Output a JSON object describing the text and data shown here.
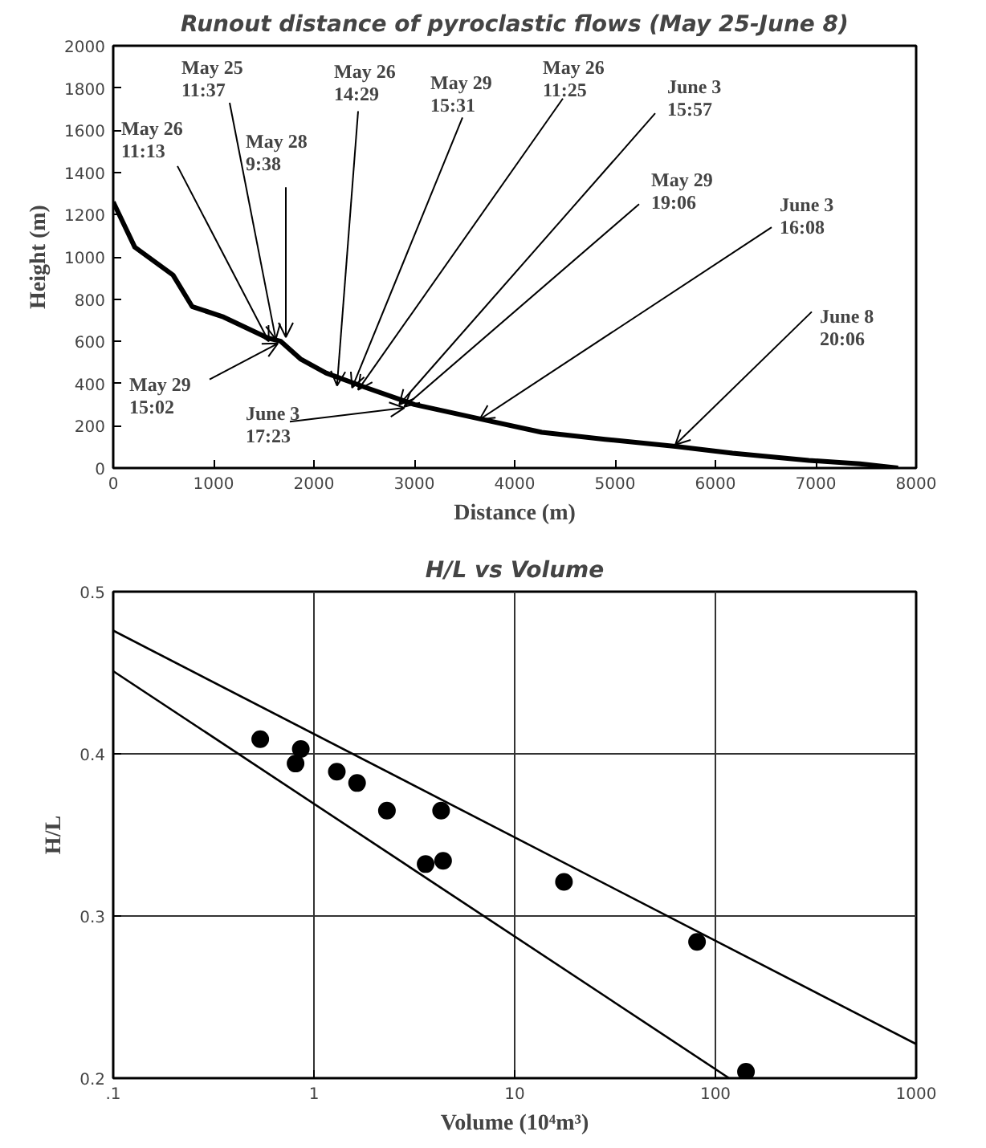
{
  "chart_data": [
    {
      "type": "line",
      "title": "Runout distance of pyroclastic flows (May 25-June 8)",
      "xlabel": "Distance (m)",
      "ylabel": "Height (m)",
      "xlim": [
        0,
        8000
      ],
      "ylim": [
        0,
        2000
      ],
      "xticks": [
        0,
        1000,
        2000,
        3000,
        4000,
        5000,
        6000,
        7000,
        8000
      ],
      "yticks": [
        0,
        200,
        400,
        600,
        800,
        1000,
        1200,
        1400,
        1600,
        1800,
        2000
      ],
      "grid": false,
      "series": [
        {
          "color": "#000000",
          "x": [
            0,
            215,
            596,
            786,
            1100,
            1540,
            1670,
            1865,
            2120,
            2500,
            3000,
            3630,
            4270,
            4900,
            5600,
            6170,
            6930,
            7440,
            7820
          ],
          "values": [
            1260,
            1046,
            914,
            765,
            715,
            616,
            600,
            517,
            450,
            384,
            301,
            235,
            169,
            136,
            103,
            70,
            36,
            20,
            0
          ]
        }
      ],
      "annotations": [
        {
          "text": "May 26\n11:13",
          "x": 1550,
          "y": 600
        },
        {
          "text": "May 25\n11:37",
          "x": 1620,
          "y": 610
        },
        {
          "text": "May 28\n9:38",
          "x": 1720,
          "y": 620
        },
        {
          "text": "May 26\n14:29",
          "x": 2230,
          "y": 390
        },
        {
          "text": "May 29\n15:31",
          "x": 2380,
          "y": 380
        },
        {
          "text": "May 26\n11:25",
          "x": 2440,
          "y": 370
        },
        {
          "text": "June 3\n15:57",
          "x": 2850,
          "y": 300
        },
        {
          "text": "May 29\n19:06",
          "x": 2900,
          "y": 290
        },
        {
          "text": "June 3\n16:08",
          "x": 3650,
          "y": 230
        },
        {
          "text": "June 8\n20:06",
          "x": 5600,
          "y": 110
        },
        {
          "text": "May 29\n15:02",
          "x": 1640,
          "y": 590
        },
        {
          "text": "June 3\n17:23",
          "x": 2900,
          "y": 285
        }
      ]
    },
    {
      "type": "scatter",
      "title": "H/L vs Volume",
      "xlabel": "Volume (10⁴m³)",
      "ylabel": "H/L",
      "log": "x",
      "grid": true,
      "xlim": [
        0.1,
        1000
      ],
      "ylim": [
        0.2,
        0.5
      ],
      "xticks": [
        {
          "value": 0.1,
          "label": ".1"
        },
        1,
        10,
        100,
        1000
      ],
      "yticks": [
        0.2,
        0.3,
        0.4,
        0.5
      ],
      "series": [
        {
          "marker": "circle",
          "color": "#000000",
          "x": [
            0.54,
            0.86,
            0.81,
            1.3,
            1.64,
            2.31,
            4.3,
            3.6,
            4.4,
            17.6,
            81,
            142
          ],
          "values": [
            0.409,
            0.403,
            0.394,
            0.389,
            0.382,
            0.365,
            0.365,
            0.332,
            0.334,
            0.321,
            0.284,
            0.204
          ]
        },
        {
          "type": "line",
          "color": "#000000",
          "x": [
            0.1,
            1000
          ],
          "values": [
            0.476,
            0.221
          ],
          "marker": "none"
        },
        {
          "type": "line",
          "color": "#000000",
          "x": [
            0.1,
            117
          ],
          "values": [
            0.451,
            0.2
          ],
          "marker": "none"
        }
      ]
    }
  ]
}
